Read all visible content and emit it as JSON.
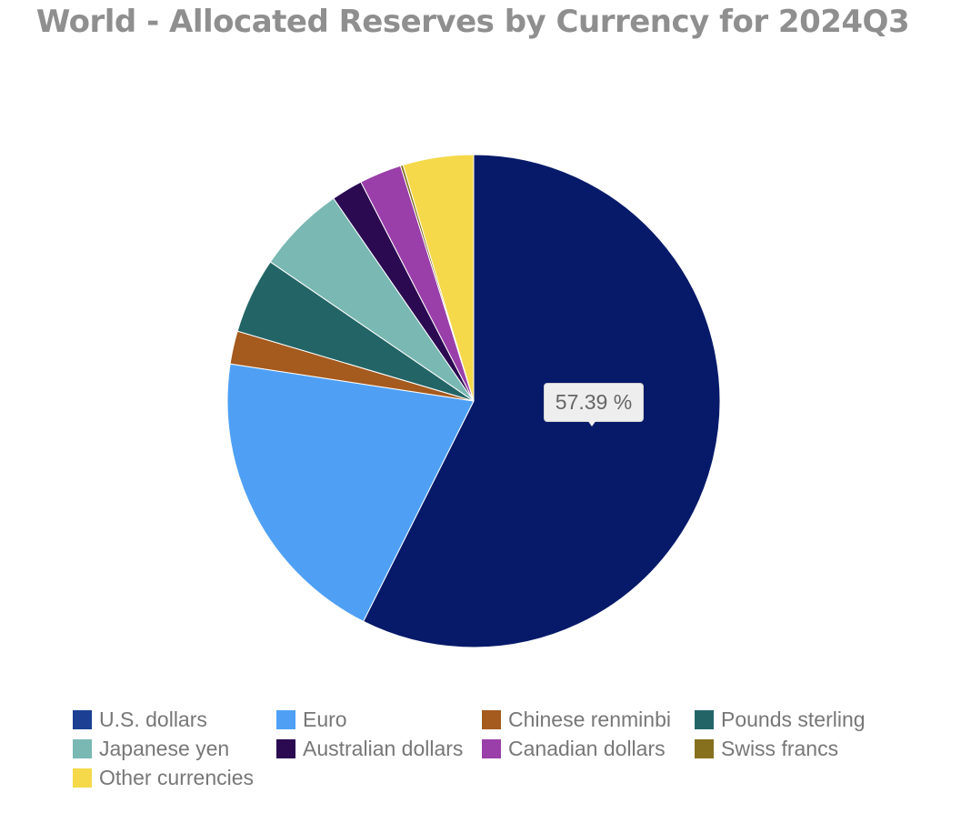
{
  "chart_data": {
    "type": "pie",
    "title": "World - Allocated Reserves by Currency for 2024Q3",
    "tooltip": "57.39 %",
    "legend_position": "bottom",
    "series": [
      {
        "name": "U.S. dollars",
        "value": 57.39,
        "color": "#071a69",
        "legend_color": "#1c3f94"
      },
      {
        "name": "Euro",
        "value": 20.02,
        "color": "#4fa0f5",
        "legend_color": "#4fa0f5"
      },
      {
        "name": "Chinese renminbi",
        "value": 2.17,
        "color": "#a55a1e",
        "legend_color": "#a55a1e"
      },
      {
        "name": "Pounds sterling",
        "value": 4.97,
        "color": "#236566",
        "legend_color": "#236566"
      },
      {
        "name": "Japanese yen",
        "value": 5.82,
        "color": "#79b8b3",
        "legend_color": "#79b8b3"
      },
      {
        "name": "Australian dollars",
        "value": 2.06,
        "color": "#2b0a52",
        "legend_color": "#2b0a52"
      },
      {
        "name": "Canadian dollars",
        "value": 2.77,
        "color": "#9a3fa9",
        "legend_color": "#9a3fa9"
      },
      {
        "name": "Swiss francs",
        "value": 0.17,
        "color": "#86701d",
        "legend_color": "#86701d"
      },
      {
        "name": "Other currencies",
        "value": 4.63,
        "color": "#f5d94a",
        "legend_color": "#f5d94a"
      }
    ]
  }
}
